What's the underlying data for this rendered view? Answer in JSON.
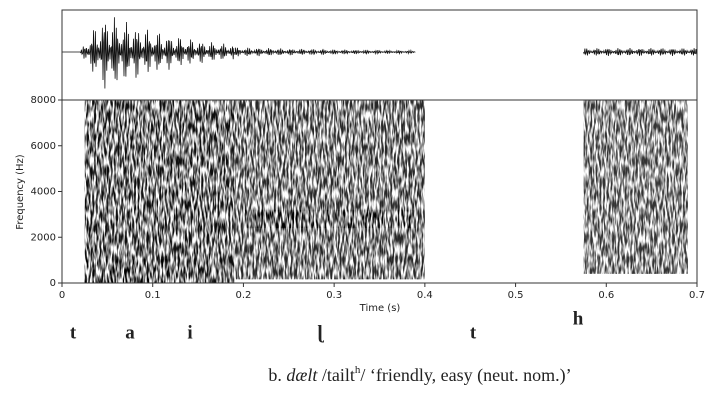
{
  "chart_data": {
    "type": "spectrogram",
    "xlabel": "Time (s)",
    "ylabel": "Frequency (Hz)",
    "xlim": [
      0,
      0.7
    ],
    "xticks": [
      0,
      0.1,
      0.2,
      0.3,
      0.4,
      0.5,
      0.6,
      0.7
    ],
    "ylim": [
      0,
      8000
    ],
    "yticks": [
      0,
      2000,
      4000,
      6000,
      8000
    ],
    "segments": [
      "t",
      "a",
      "i",
      "ɭ",
      "t",
      "h"
    ],
    "caption": [
      "b.",
      "dælt",
      "/tailt",
      "h",
      "/ ‘friendly, easy (neut. nom.)’"
    ]
  }
}
